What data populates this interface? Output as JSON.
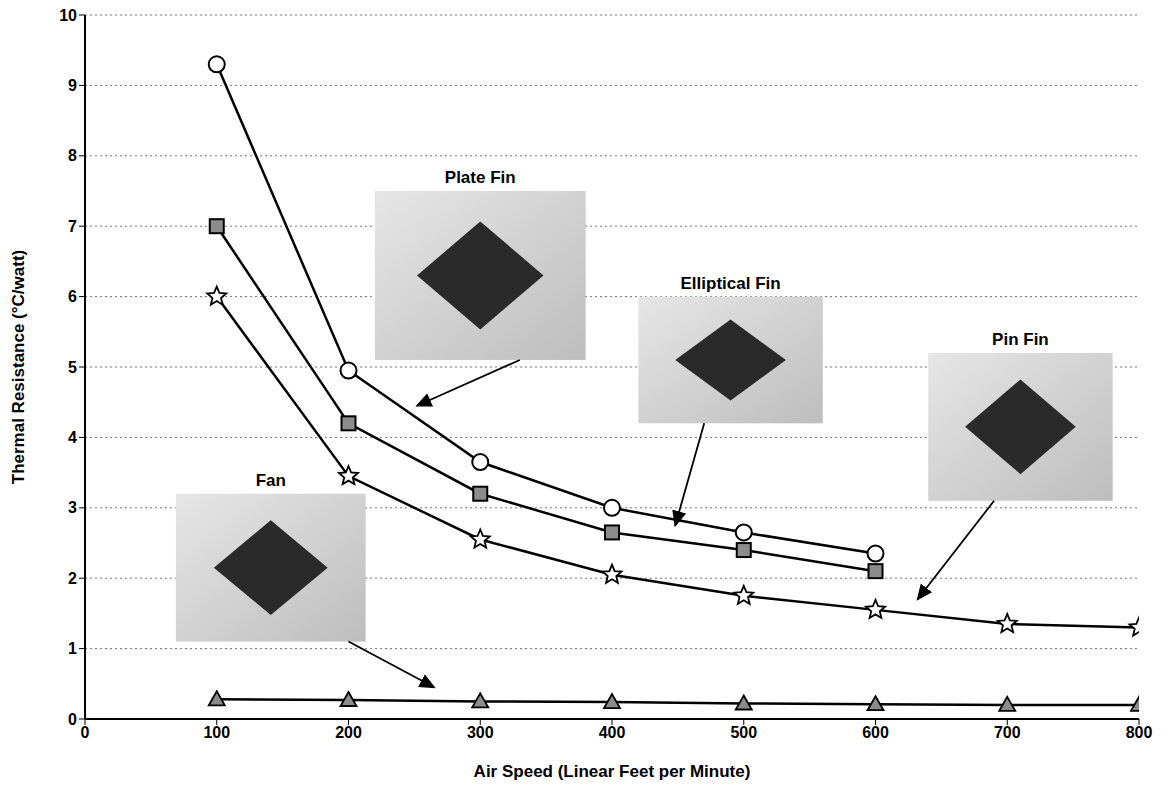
{
  "chart_data": {
    "type": "line",
    "x_label": "Air Speed (Linear Feet per Minute)",
    "y_label": "Thermal Resistance (°C/watt)",
    "x": [
      100,
      200,
      300,
      400,
      500,
      600,
      700,
      800
    ],
    "series": [
      {
        "name": "Plate Fin",
        "color": "#000000",
        "marker": "circle",
        "values": [
          9.3,
          4.95,
          3.65,
          3.0,
          2.65,
          2.35,
          null,
          null
        ]
      },
      {
        "name": "Elliptical Fin",
        "color": "#000000",
        "marker": "square",
        "values": [
          7.0,
          4.2,
          3.2,
          2.65,
          2.4,
          2.1,
          null,
          null
        ]
      },
      {
        "name": "Pin Fin",
        "color": "#000000",
        "marker": "star",
        "values": [
          6.0,
          3.45,
          2.55,
          2.05,
          1.75,
          1.55,
          1.35,
          1.3
        ]
      },
      {
        "name": "Fan",
        "color": "#000000",
        "marker": "triangle",
        "values": [
          0.28,
          0.27,
          0.25,
          0.24,
          0.22,
          0.21,
          0.2,
          0.2
        ]
      }
    ],
    "xlim": [
      0,
      800
    ],
    "xticks": [
      0,
      100,
      200,
      300,
      400,
      500,
      600,
      700,
      800
    ],
    "ylim": [
      0,
      10
    ],
    "yticks": [
      0,
      1,
      2,
      3,
      4,
      5,
      6,
      7,
      8,
      9,
      10
    ],
    "grid": true
  }
}
